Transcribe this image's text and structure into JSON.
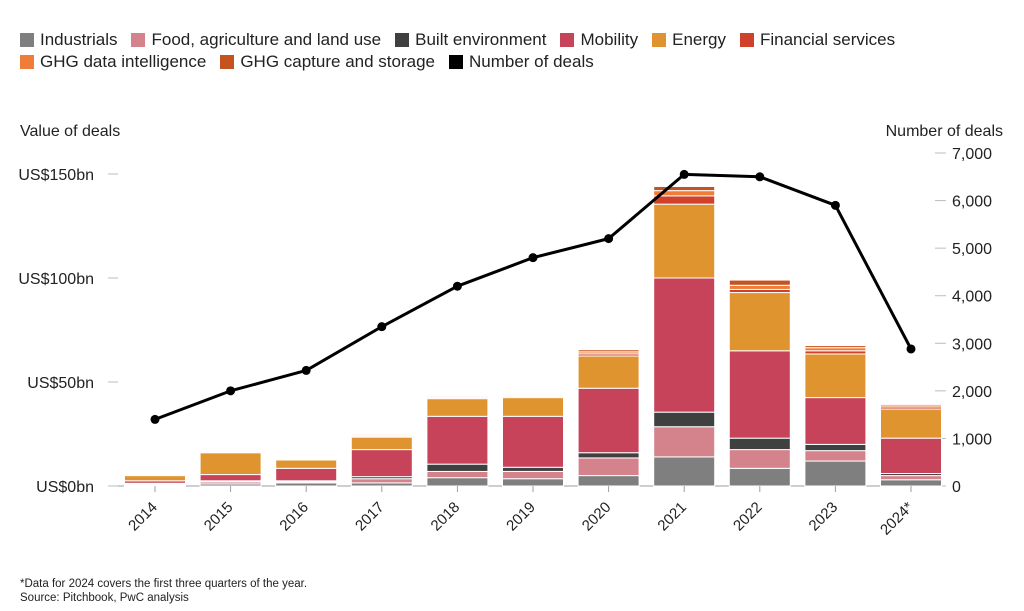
{
  "chart_data": {
    "type": "bar",
    "subtype": "stacked-bar-with-line",
    "left_axis_title": "Value of deals",
    "right_axis_title": "Number of deals",
    "categories": [
      "2014",
      "2015",
      "2016",
      "2017",
      "2018",
      "2019",
      "2020",
      "2021",
      "2022",
      "2023",
      "2024*"
    ],
    "left_axis": {
      "range": [
        0,
        160
      ],
      "ticks": [
        0,
        50,
        100,
        150
      ],
      "tick_labels": [
        "US$0bn",
        "US$50bn",
        "US$100bn",
        "US$150bn"
      ],
      "unit": "US$bn"
    },
    "right_axis": {
      "range": [
        0,
        7000
      ],
      "ticks": [
        0,
        1000,
        2000,
        3000,
        4000,
        5000,
        6000,
        7000
      ],
      "tick_labels": [
        "0",
        "1,000",
        "2,000",
        "3,000",
        "4,000",
        "5,000",
        "6,000",
        "7,000"
      ]
    },
    "series": [
      {
        "name": "Industrials",
        "color": "#7f7f7f",
        "values": [
          0.5,
          1.0,
          1.5,
          1.5,
          4.0,
          3.5,
          5.0,
          14.0,
          8.5,
          12.0,
          3.0
        ]
      },
      {
        "name": "Food, agriculture and land use",
        "color": "#d4828c",
        "values": [
          0.5,
          1.0,
          0.5,
          2.0,
          3.0,
          3.5,
          8.5,
          14.5,
          9.0,
          5.0,
          2.0
        ]
      },
      {
        "name": "Built environment",
        "color": "#404040",
        "values": [
          0.3,
          0.5,
          0.5,
          1.0,
          3.5,
          2.0,
          2.5,
          7.0,
          5.5,
          3.0,
          1.0
        ]
      },
      {
        "name": "Mobility",
        "color": "#c7435a",
        "values": [
          1.2,
          3.0,
          6.0,
          13.0,
          23.0,
          24.5,
          31.0,
          64.5,
          42.0,
          22.5,
          17.0
        ]
      },
      {
        "name": "Energy",
        "color": "#e0942f",
        "values": [
          2.5,
          10.5,
          4.0,
          6.0,
          8.5,
          9.0,
          15.5,
          35.5,
          28.0,
          21.0,
          14.0
        ]
      },
      {
        "name": "Financial services",
        "color": "#d0412c",
        "values": [
          0.3,
          0.4,
          0.2,
          0.5,
          0.5,
          0.5,
          1.0,
          4.0,
          1.5,
          1.5,
          1.0
        ]
      },
      {
        "name": "GHG data intelligence",
        "color": "#f07c3a",
        "values": [
          0.3,
          0.3,
          0.2,
          0.5,
          0.5,
          0.5,
          1.0,
          2.5,
          2.0,
          1.5,
          1.0
        ]
      },
      {
        "name": "GHG capture and storage",
        "color": "#c4531f",
        "values": [
          0.2,
          0.3,
          0.1,
          0.5,
          0.5,
          0.5,
          1.0,
          2.0,
          2.5,
          1.0,
          0.5
        ]
      },
      {
        "name": "Number of deals",
        "type": "line",
        "axis": "right",
        "color": "#000000",
        "values": [
          1400,
          2000,
          2430,
          3350,
          4200,
          4800,
          5200,
          6550,
          6500,
          5900,
          2880
        ]
      }
    ]
  },
  "footnote": {
    "line1": "*Data for 2024 covers the first three quarters of the year.",
    "line2": "Source: Pitchbook, PwC analysis"
  }
}
